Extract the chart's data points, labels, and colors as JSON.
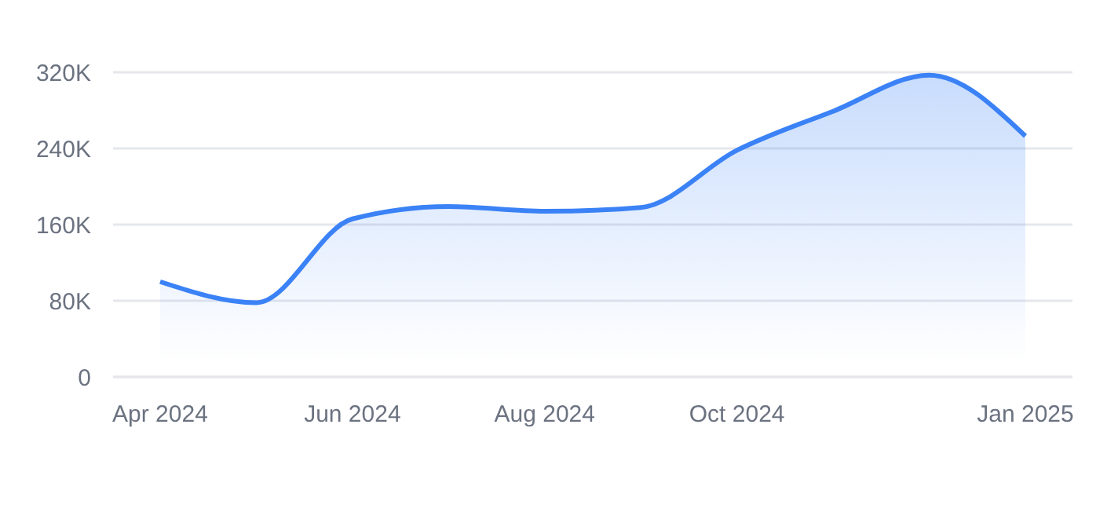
{
  "chart_data": {
    "type": "area",
    "categories": [
      "Apr 2024",
      null,
      "Jun 2024",
      null,
      "Aug 2024",
      null,
      "Oct 2024",
      null,
      null,
      "Jan 2025"
    ],
    "series": [
      {
        "color": "#3b82f6",
        "values": [
          100000,
          78000,
          166000,
          179000,
          174000,
          178000,
          238000,
          279000,
          317000,
          253000
        ]
      }
    ],
    "ylim": [
      0,
      320000
    ],
    "yticks": [
      {
        "value": 0,
        "label": "0"
      },
      {
        "value": 80000,
        "label": "80K"
      },
      {
        "value": 160000,
        "label": "160K"
      },
      {
        "value": 240000,
        "label": "240K"
      },
      {
        "value": 320000,
        "label": "320K"
      }
    ],
    "grid": "y",
    "legend": false,
    "marker": "none",
    "line_style": "solid"
  }
}
